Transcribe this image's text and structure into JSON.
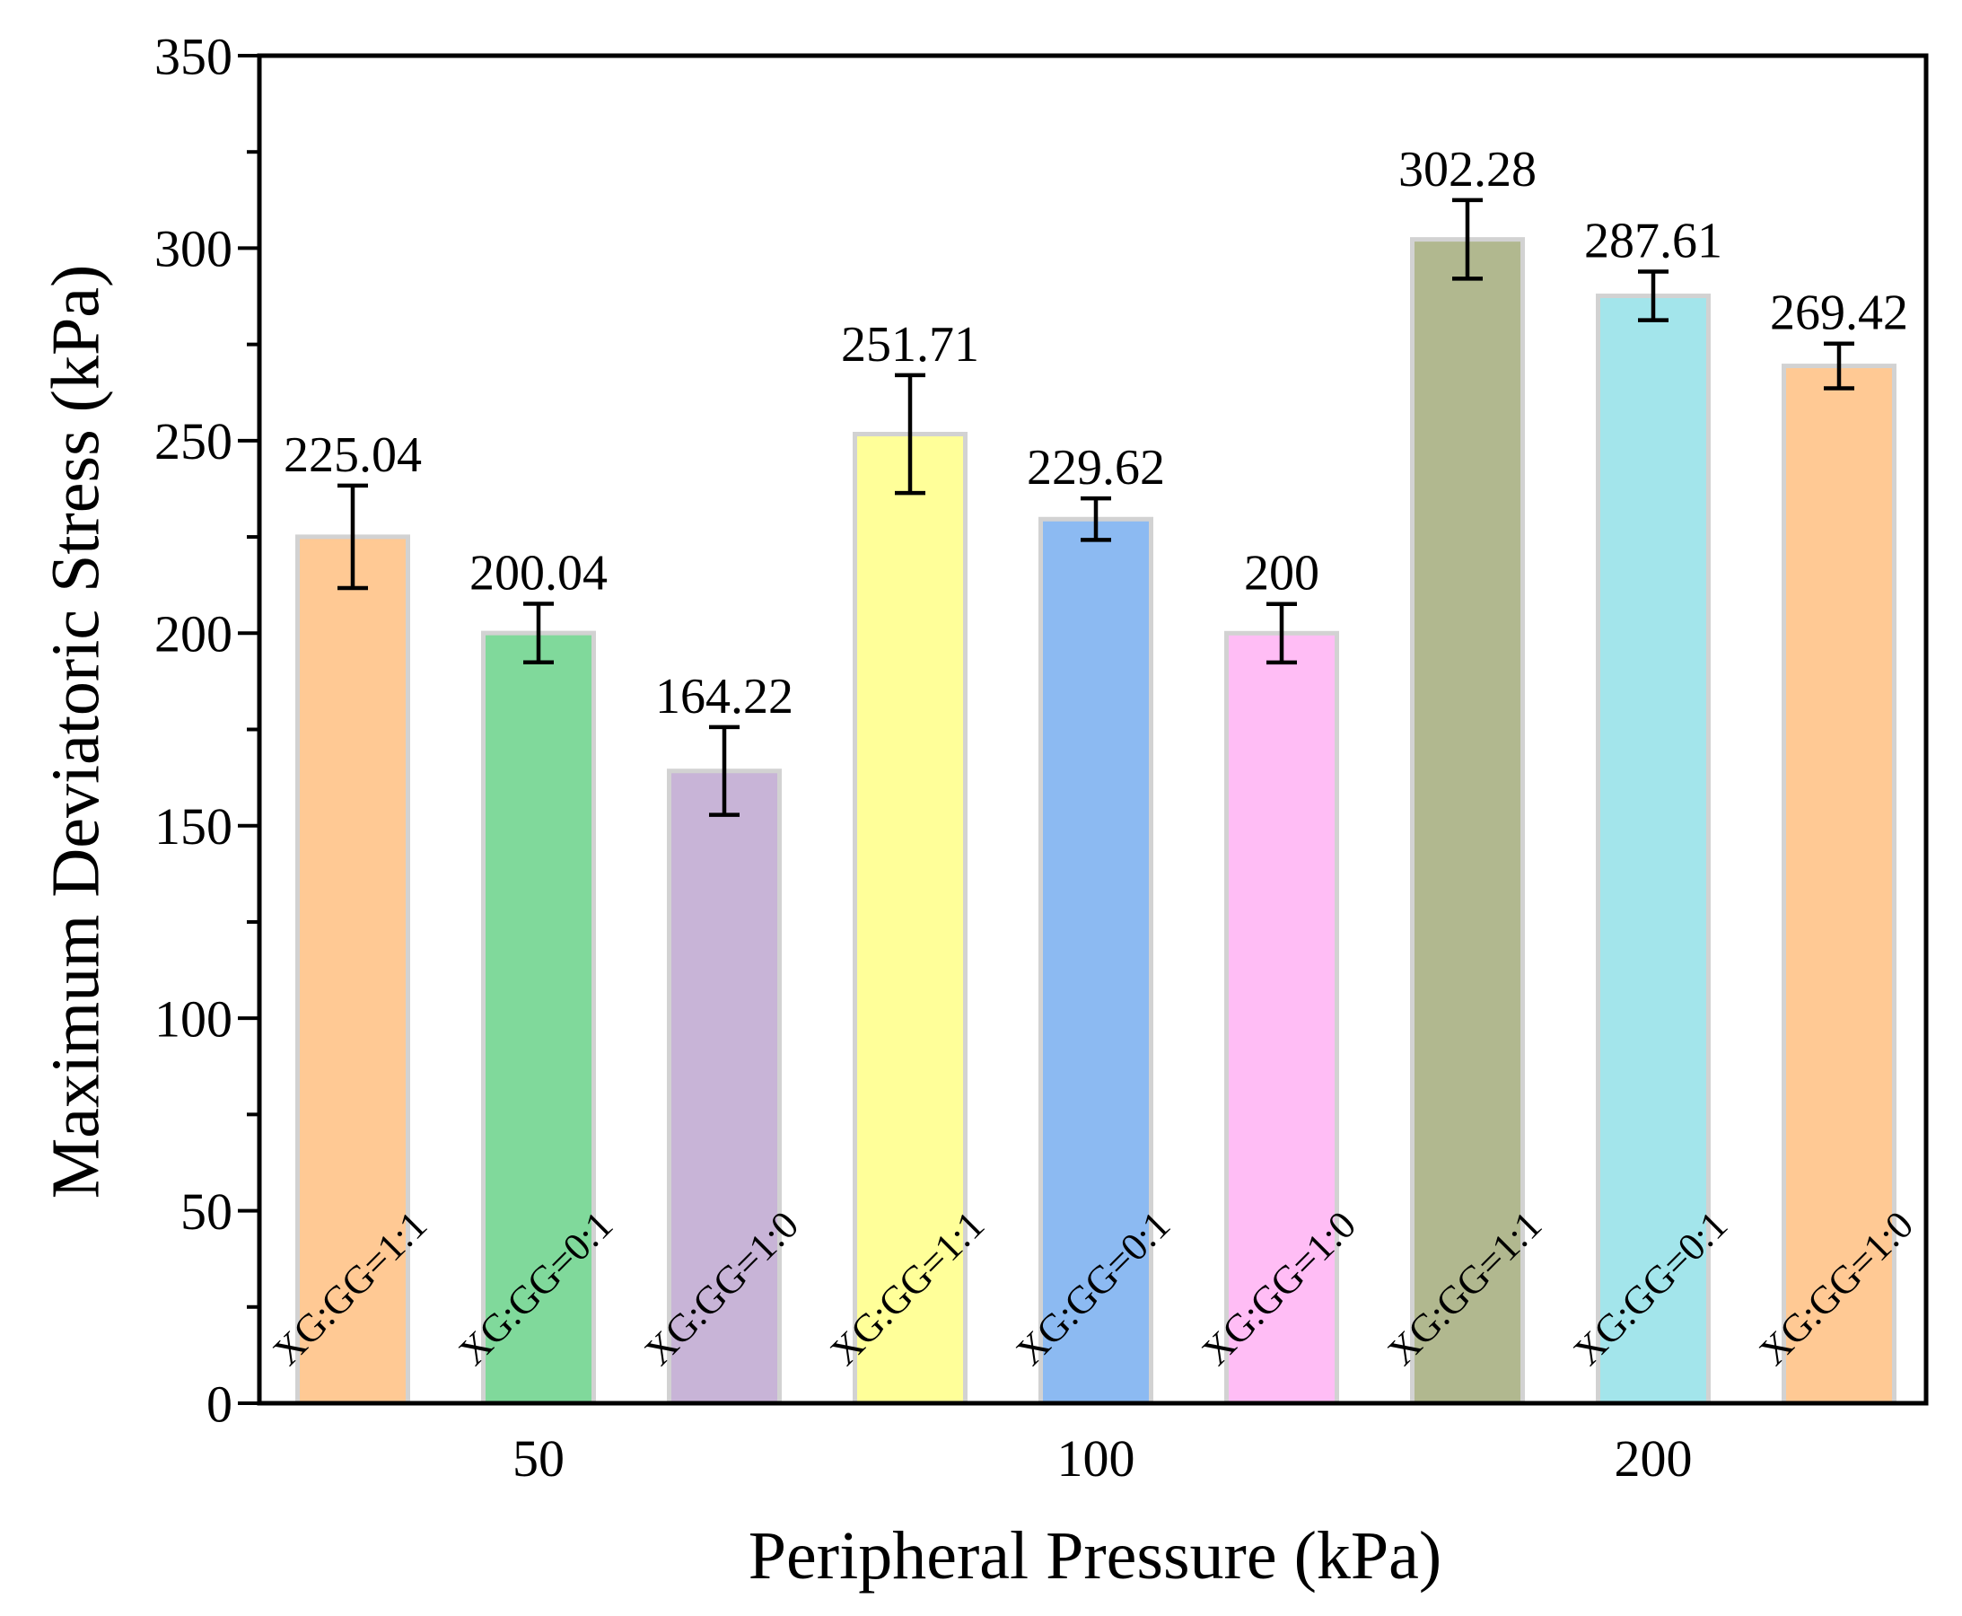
{
  "chart_data": {
    "type": "bar",
    "title": "",
    "xlabel": "Peripheral Pressure (kPa)",
    "ylabel": "Maximum Deviatoric Stress (kPa)",
    "ylim": [
      0,
      350
    ],
    "yticks": [
      0,
      50,
      100,
      150,
      200,
      250,
      300,
      350
    ],
    "grid": false,
    "groups": [
      {
        "label": "50",
        "bars": [
          {
            "label": "XG:GG=1:1",
            "value": 225.04,
            "value_label": "225.04",
            "error": 13.3,
            "color": "#FFC994"
          },
          {
            "label": "XG:GG=0:1",
            "value": 200.04,
            "value_label": "200.04",
            "error": 7.6,
            "color": "#80D99B"
          },
          {
            "label": "XG:GG=1:0",
            "value": 164.22,
            "value_label": "164.22",
            "error": 11.4,
            "color": "#C8B4D7"
          }
        ]
      },
      {
        "label": "100",
        "bars": [
          {
            "label": "XG:GG=1:1",
            "value": 251.71,
            "value_label": "251.71",
            "error": 15.3,
            "color": "#FFFF99"
          },
          {
            "label": "XG:GG=0:1",
            "value": 229.62,
            "value_label": "229.62",
            "error": 5.4,
            "color": "#8CBAF2"
          },
          {
            "label": "XG:GG=1:0",
            "value": 200,
            "value_label": "200",
            "error": 7.6,
            "color": "#FFBDF5"
          }
        ]
      },
      {
        "label": "200",
        "bars": [
          {
            "label": "XG:GG=1:1",
            "value": 302.28,
            "value_label": "302.28",
            "error": 10.2,
            "color": "#B1B88F"
          },
          {
            "label": "XG:GG=0:1",
            "value": 287.61,
            "value_label": "287.61",
            "error": 6.3,
            "color": "#A3E5EB"
          },
          {
            "label": "XG:GG=1:0",
            "value": 269.42,
            "value_label": "269.42",
            "error": 5.8,
            "color": "#FFC994"
          }
        ]
      }
    ]
  }
}
